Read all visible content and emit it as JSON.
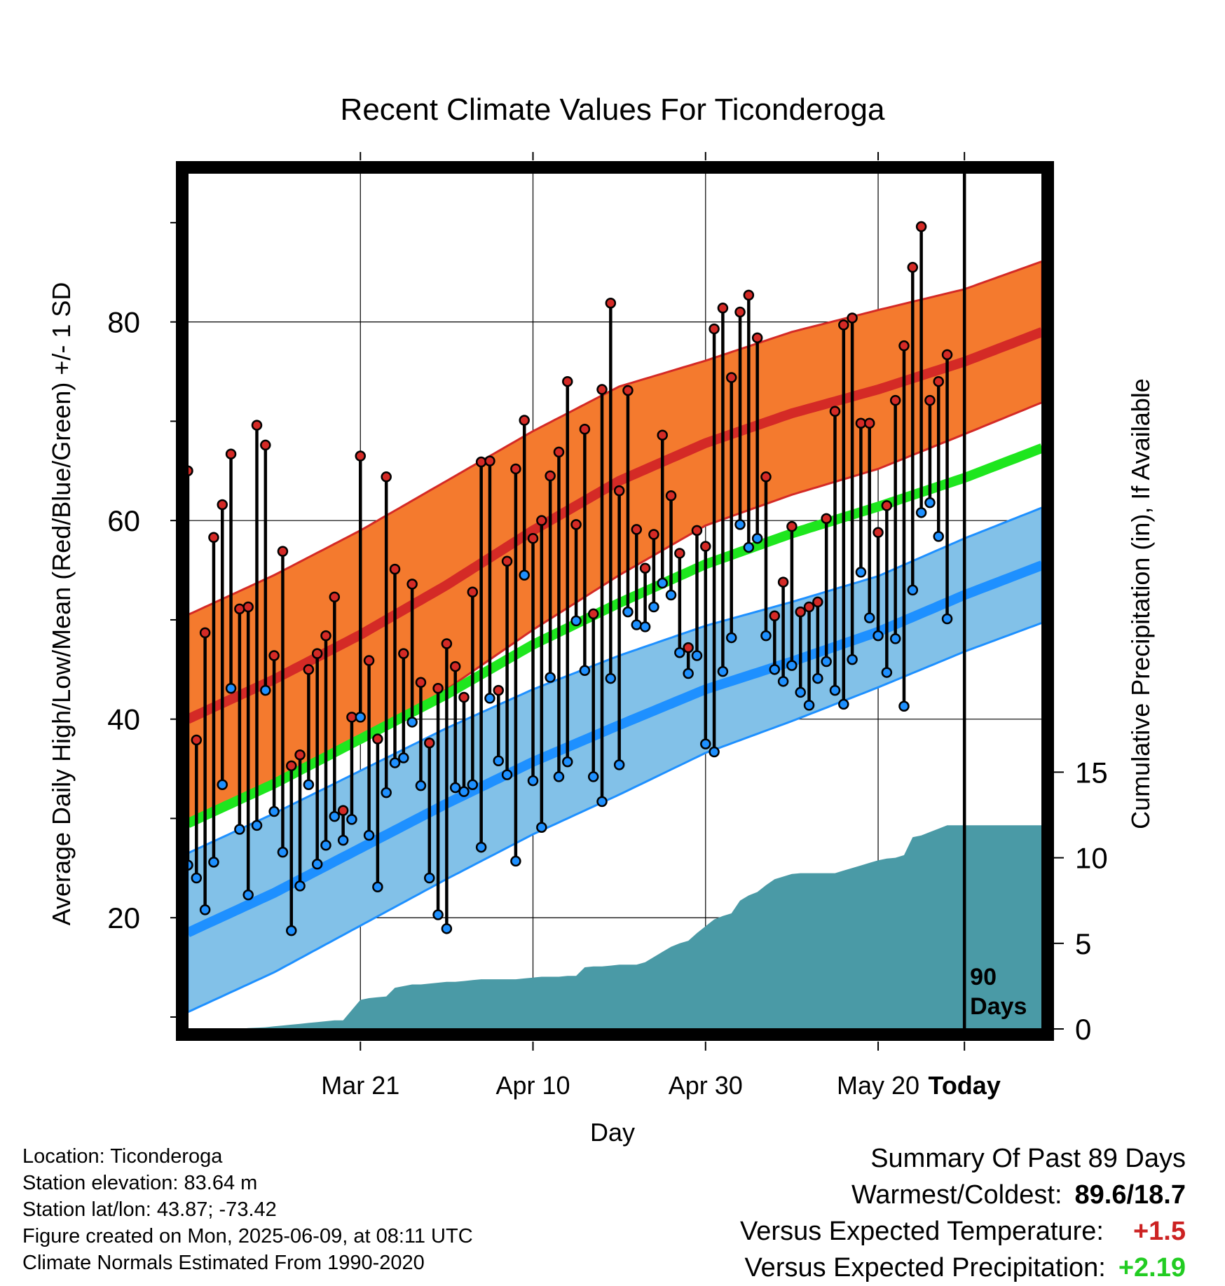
{
  "chart_data": {
    "type": "line",
    "title": "Recent Climate Values For Ticonderoga",
    "xlabel": "Day",
    "ylabel": "Average Daily High/Low/Mean (Red/Blue/Green) +/- 1 SD",
    "ylabel_right": "Cumulative Precipitation (in), If Available",
    "x_ticks": [
      "Mar 21",
      "Apr 10",
      "Apr 30",
      "May 20",
      "Today"
    ],
    "y_ticks": [
      "20",
      "40",
      "60",
      "80"
    ],
    "y_right_ticks": [
      "0",
      "5",
      "10",
      "15"
    ],
    "ylim": [
      8.8,
      95
    ],
    "ylim_right": [
      0,
      50
    ],
    "marker_label": "90\nDays",
    "x_range_days": [
      -90,
      9
    ],
    "normals": {
      "day": [
        -90,
        -80,
        -70,
        -60,
        -50,
        -40,
        -30,
        -20,
        -10,
        0,
        9
      ],
      "high_mean": [
        40,
        44,
        48.5,
        53.5,
        59,
        64,
        67.8,
        70.8,
        73.2,
        76,
        79
      ],
      "high_sd": [
        10.5,
        10.5,
        10.5,
        10.5,
        10,
        9.5,
        8.3,
        8.2,
        8,
        7.3,
        7.1
      ],
      "low_mean": [
        18.5,
        22.5,
        27,
        31.5,
        35.7,
        39.4,
        43,
        45.8,
        48.8,
        52.5,
        55.5
      ],
      "low_sd": [
        8,
        8,
        7.8,
        7.6,
        7.3,
        7,
        6.4,
        6,
        5.6,
        5.7,
        5.8
      ],
      "avg_mean": [
        29.5,
        33.5,
        38,
        42.5,
        47.5,
        51.7,
        55.6,
        58.7,
        61.4,
        64.3,
        67.3
      ]
    },
    "series": [
      {
        "name": "Daily High",
        "values": [
          65,
          37.9,
          48.7,
          58.3,
          61.6,
          66.7,
          51.1,
          51.3,
          69.6,
          67.6,
          46.4,
          56.9,
          35.3,
          36.4,
          45,
          46.6,
          48.4,
          52.3,
          30.8,
          40.2,
          66.5,
          45.9,
          38,
          64.4,
          55.1,
          46.6,
          53.6,
          43.7,
          37.6,
          43.1,
          47.6,
          45.3,
          42.2,
          52.8,
          65.9,
          66,
          42.9,
          55.9,
          65.2,
          70.1,
          58.2,
          60,
          64.5,
          66.9,
          74,
          59.6,
          69.2,
          50.6,
          73.2,
          81.9,
          63,
          73.1,
          59.1,
          55.2,
          58.6,
          68.6,
          62.5,
          56.7,
          47.2,
          59,
          57.4,
          79.3,
          81.4,
          74.4,
          81,
          82.7,
          78.4,
          64.4,
          50.4,
          53.8,
          59.4,
          50.8,
          51.3,
          51.8,
          60.2,
          71,
          79.7,
          80.4,
          69.8,
          69.8,
          58.8,
          61.5,
          72.1,
          77.6,
          85.5,
          89.6,
          72.1,
          74,
          76.7
        ]
      },
      {
        "name": "Daily Low",
        "values": [
          25.3,
          24,
          20.8,
          25.6,
          33.4,
          43.1,
          28.9,
          22.3,
          29.3,
          42.9,
          30.7,
          26.6,
          18.7,
          23.2,
          33.4,
          25.4,
          27.3,
          30.2,
          27.8,
          29.9,
          40.2,
          28.3,
          23.1,
          32.6,
          35.6,
          36.1,
          39.7,
          33.3,
          24,
          20.3,
          18.9,
          33.1,
          32.7,
          33.4,
          27.1,
          42.1,
          35.8,
          34.4,
          25.7,
          54.5,
          33.8,
          29.1,
          44.2,
          34.2,
          35.7,
          49.9,
          44.9,
          34.2,
          31.7,
          44.1,
          35.4,
          50.8,
          49.5,
          49.3,
          51.3,
          53.7,
          52.5,
          46.7,
          44.6,
          46.4,
          37.5,
          36.7,
          44.8,
          48.2,
          59.6,
          57.3,
          58.2,
          48.4,
          45,
          43.8,
          45.4,
          42.7,
          41.4,
          44.1,
          45.8,
          42.9,
          41.5,
          46,
          54.8,
          50.2,
          48.4,
          44.7,
          48.1,
          41.3,
          53,
          60.8,
          61.8,
          58.4,
          50.1
        ]
      },
      {
        "name": "Cumulative Precipitation",
        "values": [
          0,
          0,
          0,
          0,
          0,
          0,
          0,
          0.05,
          0.07,
          0.1,
          0.15,
          0.2,
          0.25,
          0.3,
          0.35,
          0.4,
          0.45,
          0.5,
          0.5,
          1.1,
          1.7,
          1.8,
          1.85,
          1.9,
          2.4,
          2.5,
          2.6,
          2.6,
          2.65,
          2.7,
          2.75,
          2.75,
          2.8,
          2.85,
          2.9,
          2.9,
          2.9,
          2.9,
          2.9,
          2.95,
          3,
          3.05,
          3.05,
          3.05,
          3.1,
          3.1,
          3.6,
          3.65,
          3.65,
          3.7,
          3.75,
          3.75,
          3.75,
          3.9,
          4.2,
          4.5,
          4.8,
          5,
          5.15,
          5.6,
          6,
          6.4,
          6.6,
          6.75,
          7.5,
          7.8,
          8,
          8.4,
          8.75,
          8.9,
          9.05,
          9.1,
          9.1,
          9.1,
          9.1,
          9.1,
          9.25,
          9.4,
          9.55,
          9.7,
          9.85,
          9.95,
          10,
          10.15,
          11.2,
          11.3,
          11.5,
          11.7,
          11.9
        ]
      }
    ],
    "legend": "none",
    "grid": true
  },
  "info": {
    "location": "Location: Ticonderoga",
    "elevation": "Station elevation: 83.64 m",
    "latlon": "Station lat/lon: 43.87; -73.42",
    "created": "Figure created on Mon, 2025-06-09, at 08:11 UTC",
    "normals_note": "Climate Normals Estimated From 1990-2020"
  },
  "summary": {
    "heading": "Summary Of Past 89 Days",
    "warmest_label": "Warmest/Coldest:",
    "warmest_value": "89.6/18.7",
    "temp_label": "Versus Expected Temperature:",
    "temp_value": "+1.5",
    "precip_label": "Versus Expected Precipitation:",
    "precip_value": "+2.19"
  },
  "colors": {
    "high_band": "#f47a2e",
    "high_line": "#d42a26",
    "low_band": "#82c1e8",
    "low_line": "#1e90ff",
    "mean_line": "#1ee61e",
    "precip": "#4a9aa6",
    "high_marker": "#d42a26",
    "low_marker": "#1e90ff"
  }
}
